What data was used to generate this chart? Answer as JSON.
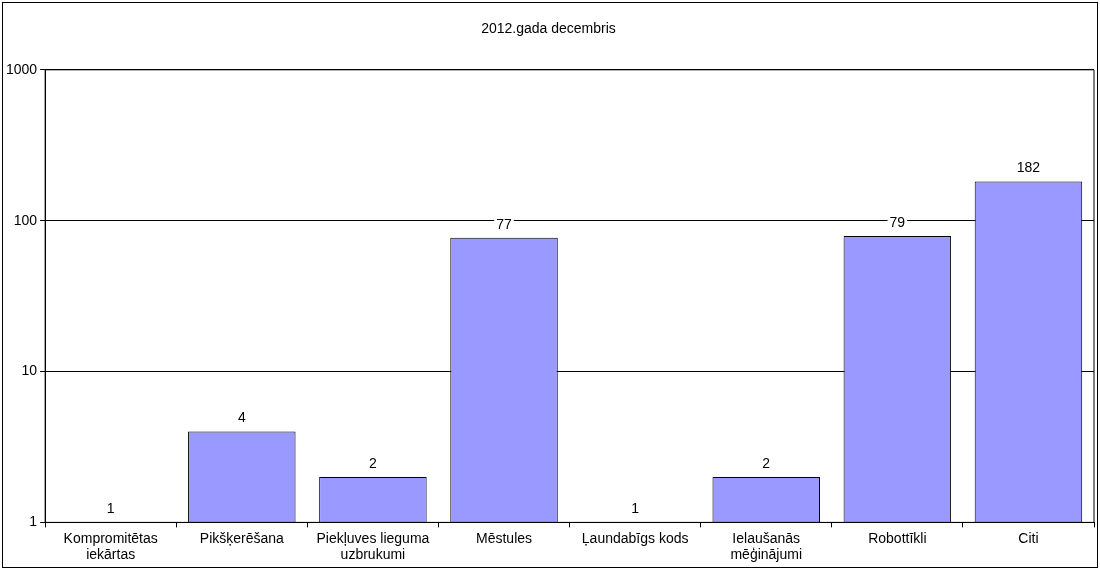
{
  "chart_data": {
    "type": "bar",
    "title": "2012.gada decembris",
    "categories": [
      "Kompromitētas iekārtas",
      "Pikšķerēšana",
      "Piekļuves lieguma uzbrukumi",
      "Mēstules",
      "Ļaundabīgs kods",
      "Ielaušanās mēģinājumi",
      "Robottīkli",
      "Citi"
    ],
    "values": [
      1,
      4,
      2,
      77,
      1,
      2,
      79,
      182
    ],
    "color": "#9999ff",
    "log": true,
    "ylim": [
      1,
      1000
    ],
    "yticks": [
      1,
      10,
      100,
      1000
    ],
    "grid": "y",
    "data_labels": true,
    "legend": false
  }
}
